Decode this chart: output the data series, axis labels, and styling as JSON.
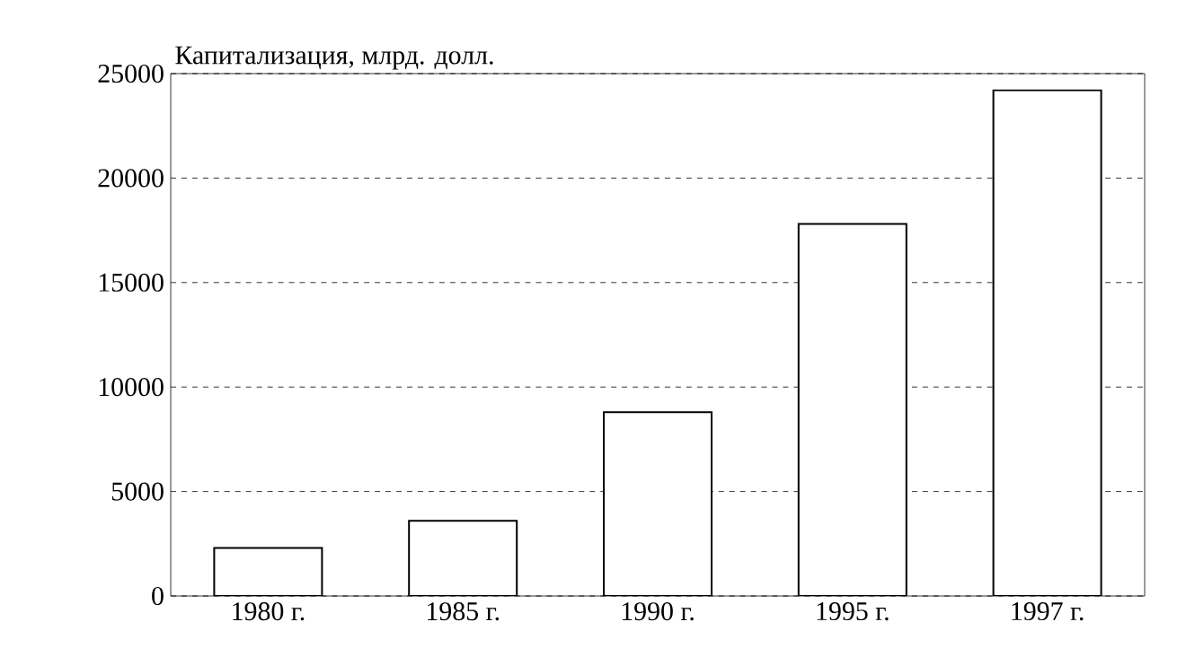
{
  "chart_data": {
    "type": "bar",
    "ylabel": "Капитализация, млрд. долл.",
    "categories": [
      "1980 г.",
      "1985 г.",
      "1990 г.",
      "1995 г.",
      "1997 г."
    ],
    "values": [
      2300,
      3600,
      8800,
      17800,
      24200
    ],
    "color": "#ffffff",
    "ylim": [
      0,
      25000
    ],
    "yticks": [
      0,
      5000,
      10000,
      15000,
      20000,
      25000
    ],
    "grid": "y"
  }
}
